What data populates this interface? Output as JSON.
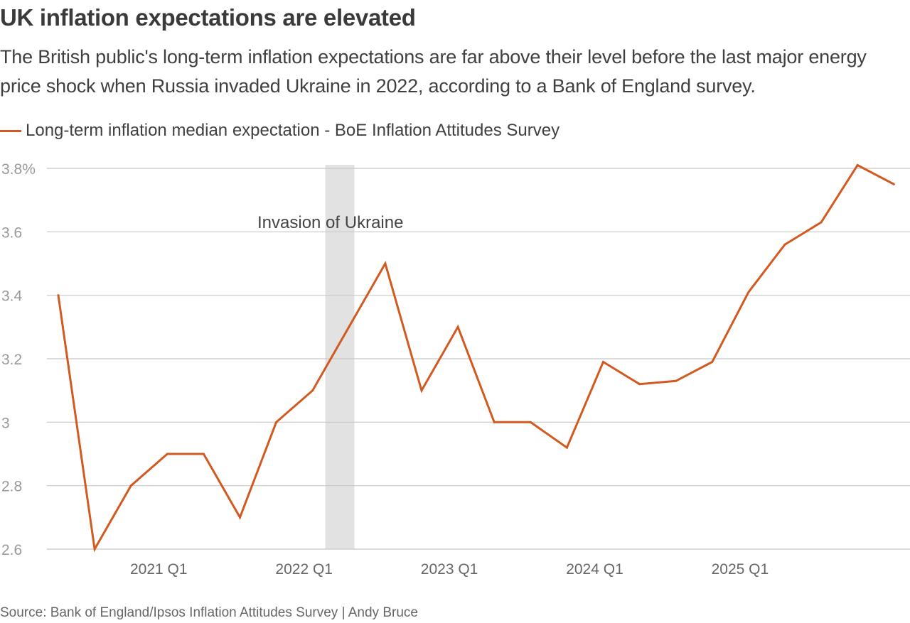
{
  "title": "UK inflation expectations are elevated",
  "subtitle": "The British public's long-term inflation expectations are far above their level before the last major energy price shock when Russia invaded Ukraine in 2022, according to a Bank of England survey.",
  "source": "Source: Bank of England/Ipsos Inflation Attitudes Survey | Andy Bruce",
  "colors": {
    "line": "#d2591f",
    "grid": "#c8c8c8",
    "shade": "#e2e2e2",
    "tick_text": "#999999",
    "x_tick_text": "#666666"
  },
  "chart_data": {
    "type": "line",
    "title": "UK inflation expectations are elevated",
    "xlabel": "",
    "ylabel": "",
    "ylim": [
      2.6,
      3.8
    ],
    "yticks": [
      {
        "value": 3.8,
        "label": "3.8%"
      },
      {
        "value": 3.6,
        "label": "3.6"
      },
      {
        "value": 3.4,
        "label": "3.4"
      },
      {
        "value": 3.2,
        "label": "3.2"
      },
      {
        "value": 3.0,
        "label": "3"
      },
      {
        "value": 2.8,
        "label": "2.8"
      },
      {
        "value": 2.6,
        "label": "2.6"
      }
    ],
    "xticks": [
      {
        "index": 3,
        "label": "2021 Q1"
      },
      {
        "index": 7,
        "label": "2022 Q1"
      },
      {
        "index": 11,
        "label": "2023 Q1"
      },
      {
        "index": 15,
        "label": "2024 Q1"
      },
      {
        "index": 19,
        "label": "2025 Q1"
      }
    ],
    "grid": true,
    "legend": "top-left",
    "series": [
      {
        "name": "Long-term inflation median expectation - BoE Inflation Attitudes Survey",
        "values": [
          3.4,
          2.6,
          2.8,
          2.9,
          2.9,
          2.7,
          3.0,
          3.1,
          3.3,
          3.5,
          3.1,
          3.3,
          3.0,
          3.0,
          2.92,
          3.19,
          3.12,
          3.13,
          3.19,
          3.41,
          3.56,
          3.63,
          3.81,
          3.75
        ]
      }
    ],
    "shaded_region": {
      "from_index": 7.35,
      "to_index": 8.15,
      "label": "Invasion of Ukraine"
    }
  }
}
